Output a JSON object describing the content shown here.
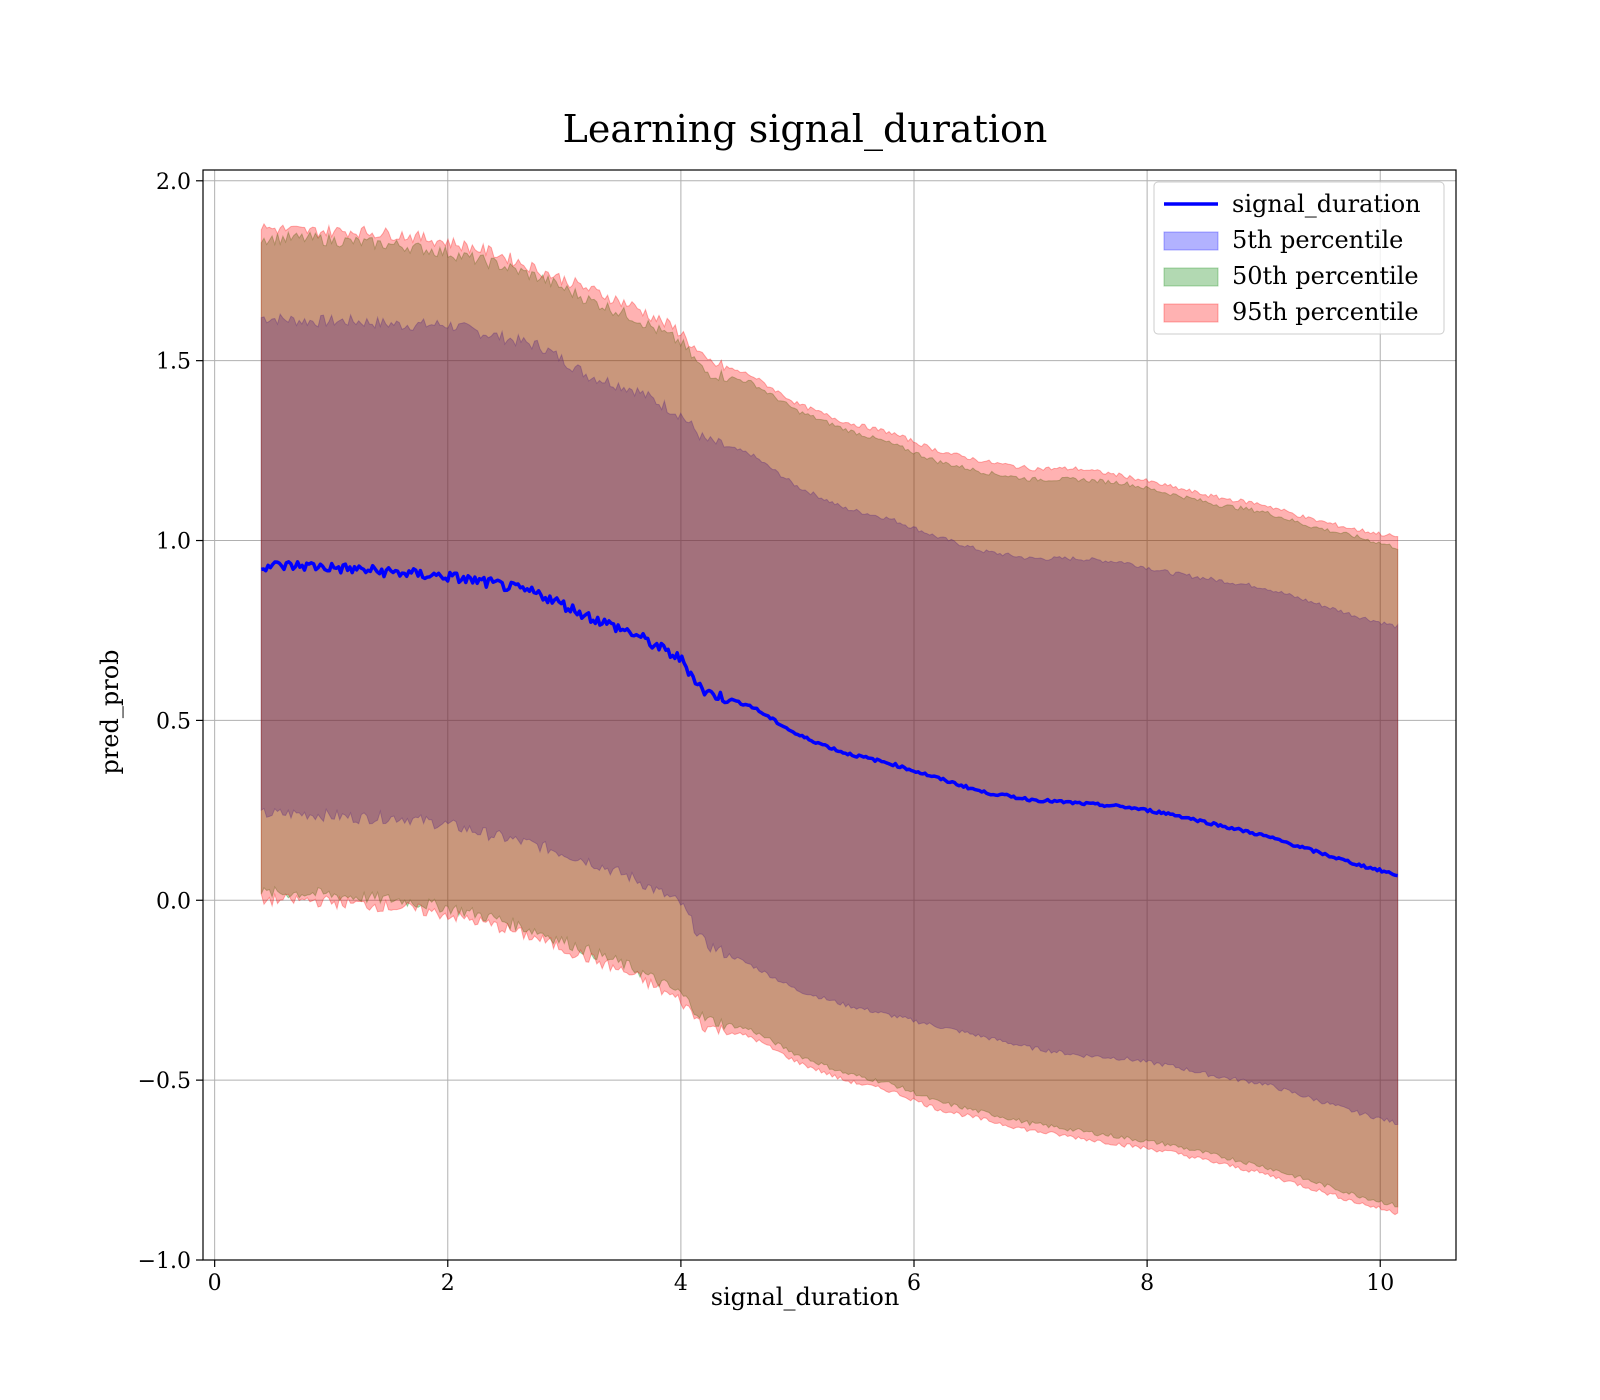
{
  "chart_data": {
    "type": "line",
    "title": "Learning signal_duration",
    "xlabel": "signal_duration",
    "ylabel": "pred_prob",
    "xlim": [
      -0.1,
      10.65
    ],
    "ylim": [
      -1.0,
      2.03
    ],
    "xticks": [
      0,
      2,
      4,
      6,
      8,
      10
    ],
    "yticks": [
      -1.0,
      -0.5,
      0.0,
      0.5,
      1.0,
      1.5,
      2.0
    ],
    "xtick_labels": [
      "0",
      "2",
      "4",
      "6",
      "8",
      "10"
    ],
    "ytick_labels": [
      "−1.0",
      "−0.5",
      "0.0",
      "0.5",
      "1.0",
      "1.5",
      "2.0"
    ],
    "grid": true,
    "legend_position": "top-right",
    "x": [
      0.4,
      0.8,
      1.2,
      1.6,
      2.0,
      2.4,
      2.8,
      3.2,
      3.6,
      4.0,
      4.2,
      4.6,
      5.0,
      5.4,
      5.8,
      6.2,
      6.6,
      7.0,
      7.4,
      7.8,
      8.2,
      8.6,
      9.0,
      9.4,
      9.8,
      10.15
    ],
    "series": [
      {
        "name": "signal_duration",
        "kind": "line",
        "color": "#0000ff",
        "values": [
          0.93,
          0.93,
          0.92,
          0.91,
          0.9,
          0.88,
          0.85,
          0.79,
          0.74,
          0.67,
          0.58,
          0.54,
          0.46,
          0.41,
          0.38,
          0.34,
          0.3,
          0.28,
          0.27,
          0.26,
          0.24,
          0.21,
          0.18,
          0.14,
          0.1,
          0.07
        ]
      },
      {
        "name": "5th percentile",
        "kind": "band",
        "color": "#0000ff",
        "upper": [
          1.62,
          1.61,
          1.61,
          1.6,
          1.6,
          1.57,
          1.54,
          1.46,
          1.42,
          1.35,
          1.28,
          1.24,
          1.15,
          1.09,
          1.06,
          1.01,
          0.97,
          0.95,
          0.95,
          0.94,
          0.91,
          0.89,
          0.87,
          0.83,
          0.79,
          0.76
        ],
        "lower": [
          0.24,
          0.24,
          0.23,
          0.23,
          0.21,
          0.18,
          0.15,
          0.11,
          0.06,
          -0.01,
          -0.12,
          -0.18,
          -0.25,
          -0.29,
          -0.32,
          -0.35,
          -0.38,
          -0.41,
          -0.43,
          -0.44,
          -0.46,
          -0.49,
          -0.51,
          -0.55,
          -0.59,
          -0.62
        ]
      },
      {
        "name": "50th percentile",
        "kind": "band",
        "color": "#008000",
        "upper": [
          1.84,
          1.84,
          1.83,
          1.82,
          1.8,
          1.77,
          1.73,
          1.67,
          1.62,
          1.55,
          1.47,
          1.44,
          1.36,
          1.31,
          1.27,
          1.22,
          1.19,
          1.17,
          1.17,
          1.16,
          1.13,
          1.1,
          1.08,
          1.04,
          1.01,
          0.98
        ]
      },
      {
        "name": "95th percentile",
        "kind": "band",
        "color": "#ff0000",
        "upper": [
          1.87,
          1.86,
          1.86,
          1.85,
          1.83,
          1.8,
          1.75,
          1.7,
          1.65,
          1.58,
          1.5,
          1.46,
          1.38,
          1.33,
          1.3,
          1.25,
          1.22,
          1.2,
          1.2,
          1.18,
          1.15,
          1.12,
          1.1,
          1.06,
          1.03,
          1.01
        ],
        "lower": [
          0.0,
          0.0,
          -0.01,
          -0.02,
          -0.04,
          -0.07,
          -0.11,
          -0.16,
          -0.21,
          -0.28,
          -0.35,
          -0.38,
          -0.45,
          -0.5,
          -0.53,
          -0.58,
          -0.61,
          -0.64,
          -0.66,
          -0.68,
          -0.7,
          -0.73,
          -0.76,
          -0.8,
          -0.84,
          -0.87
        ]
      }
    ],
    "band_50_lower": [
      0.02,
      0.02,
      0.01,
      0.0,
      -0.02,
      -0.05,
      -0.09,
      -0.14,
      -0.19,
      -0.26,
      -0.33,
      -0.36,
      -0.43,
      -0.48,
      -0.51,
      -0.56,
      -0.59,
      -0.62,
      -0.64,
      -0.66,
      -0.68,
      -0.71,
      -0.74,
      -0.78,
      -0.82,
      -0.85
    ],
    "legend": [
      {
        "label": "signal_duration",
        "kind": "line",
        "color": "#0000ff"
      },
      {
        "label": "5th percentile",
        "kind": "patch",
        "color": "#0000ff"
      },
      {
        "label": "50th percentile",
        "kind": "patch",
        "color": "#008000"
      },
      {
        "label": "95th percentile",
        "kind": "patch",
        "color": "#ff0000"
      }
    ]
  }
}
